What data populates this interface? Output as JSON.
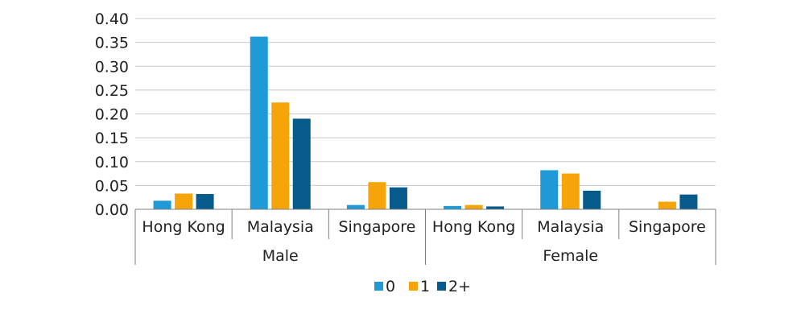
{
  "chart_data": {
    "type": "bar",
    "groups": [
      {
        "name": "Male",
        "categories": [
          "Hong Kong",
          "Malaysia",
          "Singapore"
        ]
      },
      {
        "name": "Female",
        "categories": [
          "Hong Kong",
          "Malaysia",
          "Singapore"
        ]
      }
    ],
    "series": [
      {
        "name": "0",
        "color": "#1f9ad6",
        "values": [
          0.018,
          0.362,
          0.009,
          0.007,
          0.082,
          0.0
        ]
      },
      {
        "name": "1",
        "color": "#f5a50a",
        "values": [
          0.033,
          0.224,
          0.057,
          0.009,
          0.075,
          0.016
        ]
      },
      {
        "name": "2+",
        "color": "#065a8c",
        "values": [
          0.032,
          0.19,
          0.046,
          0.006,
          0.039,
          0.031
        ]
      }
    ],
    "yticks": [
      "0.00",
      "0.05",
      "0.10",
      "0.15",
      "0.20",
      "0.25",
      "0.30",
      "0.35",
      "0.40"
    ],
    "ylim": [
      0,
      0.4
    ],
    "grid": true,
    "legend_position": "bottom"
  }
}
